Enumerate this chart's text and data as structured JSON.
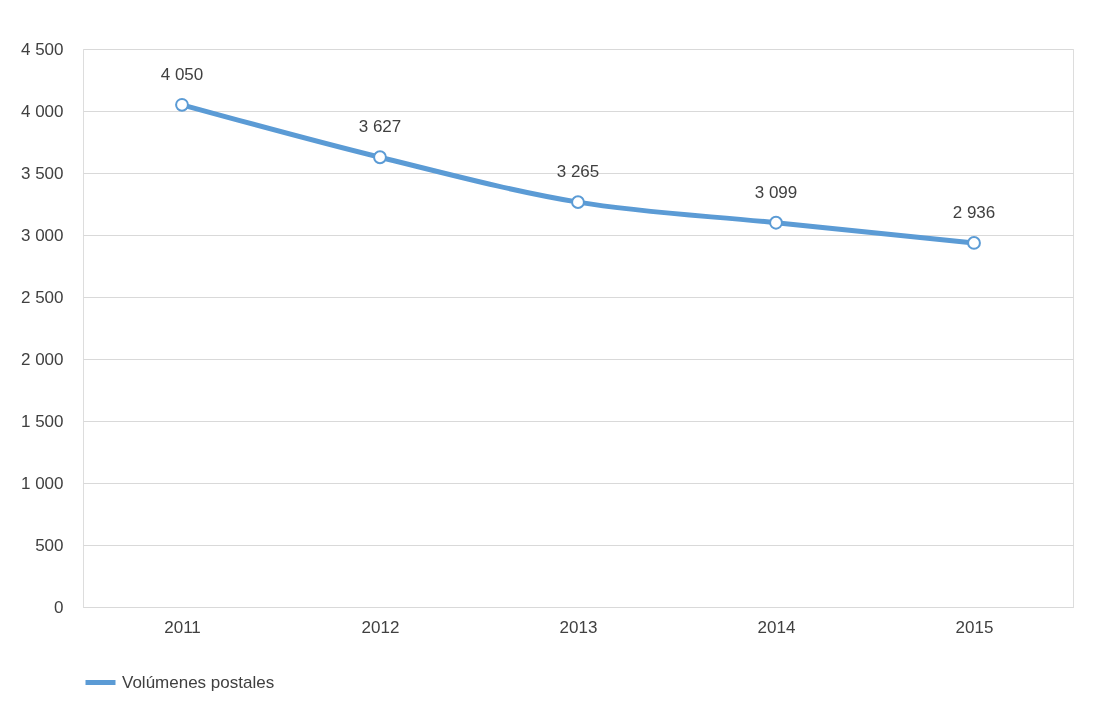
{
  "chart_data": {
    "type": "line",
    "categories": [
      "2011",
      "2012",
      "2013",
      "2014",
      "2015"
    ],
    "series": [
      {
        "name": "Volúmenes postales",
        "color": "#5b9bd5",
        "values": [
          4050,
          3627,
          3265,
          3099,
          2936
        ],
        "value_labels": [
          "4 050",
          "3 627",
          "3 265",
          "3 099",
          "2 936"
        ]
      }
    ],
    "ylim": [
      0,
      4500
    ],
    "yticks": [
      0,
      500,
      {
        "value": 1000,
        "label": "1 000"
      },
      {
        "value": 1500,
        "label": "1 500"
      },
      {
        "value": 2000,
        "label": "2 000"
      },
      {
        "value": 2500,
        "label": "2 500"
      },
      {
        "value": 3000,
        "label": "3 000"
      },
      {
        "value": 3500,
        "label": "3 500"
      },
      {
        "value": 4000,
        "label": "4 000"
      },
      {
        "value": 4500,
        "label": "4 500"
      }
    ],
    "grid": "y",
    "legend": "bottom",
    "marker": "circle",
    "line_style": "solid"
  }
}
